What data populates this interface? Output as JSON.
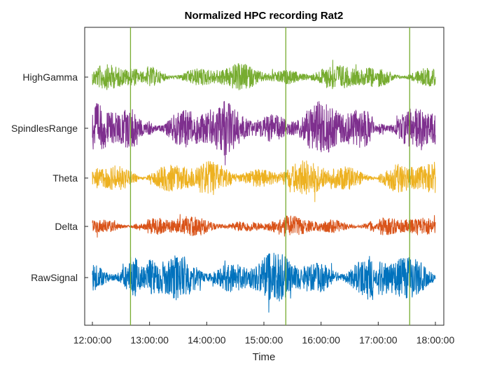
{
  "chart_data": {
    "type": "line",
    "title": "Normalized HPC recording Rat2",
    "xlabel": "Time",
    "ylabel": "",
    "x_ticks": [
      "12:00:00",
      "13:00:00",
      "14:00:00",
      "15:00:00",
      "16:00:00",
      "17:00:00",
      "18:00:00"
    ],
    "xlim": [
      "12:00:00",
      "18:00:00"
    ],
    "grid": false,
    "legend": "none",
    "series": [
      {
        "name": "HighGamma",
        "color": "#77AC30",
        "amplitude": 0.45
      },
      {
        "name": "SpindlesRange",
        "color": "#7E2F8E",
        "amplitude": 0.9
      },
      {
        "name": "Theta",
        "color": "#EDB120",
        "amplitude": 0.6
      },
      {
        "name": "Delta",
        "color": "#D95319",
        "amplitude": 0.35
      },
      {
        "name": "RawSignal",
        "color": "#0072BD",
        "amplitude": 0.85
      }
    ],
    "vertical_markers": [
      {
        "time": "12:40:00",
        "color": "#77AC30"
      },
      {
        "time": "15:23:00",
        "color": "#77AC30"
      },
      {
        "time": "17:33:00",
        "color": "#77AC30"
      }
    ]
  }
}
